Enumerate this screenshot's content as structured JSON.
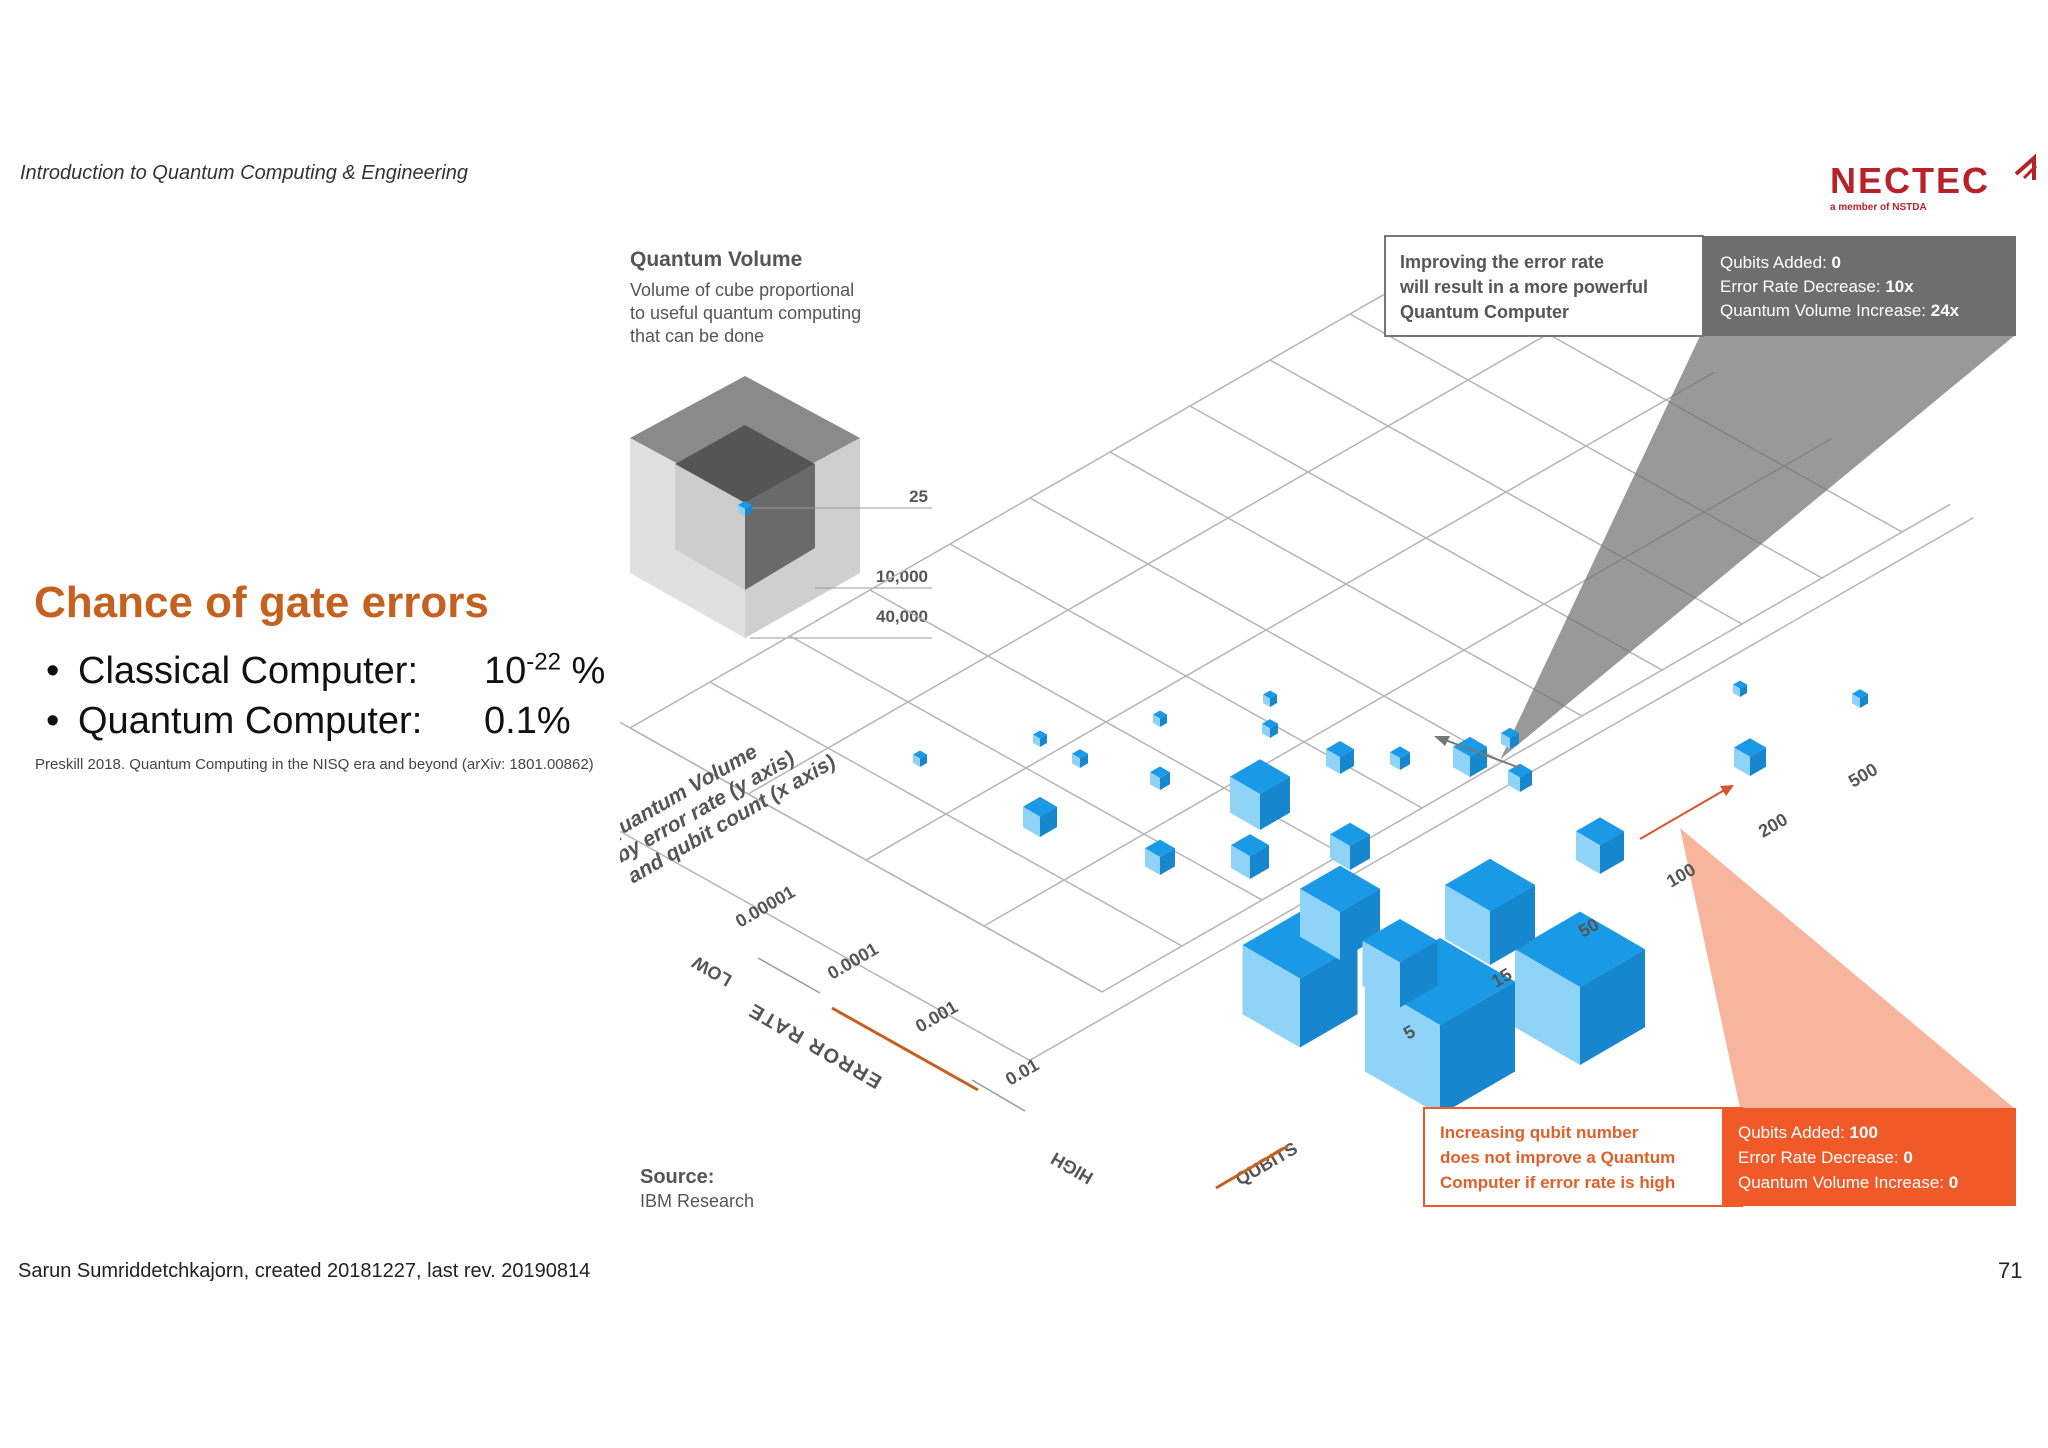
{
  "header": {
    "course_title": "Introduction to Quantum Computing & Engineering"
  },
  "logo": {
    "brand": "NECTEC",
    "tagline": "a member of NSTDA"
  },
  "content": {
    "title": "Chance of gate errors",
    "bullets": [
      {
        "label": "Classical Computer:",
        "value_base": "10",
        "value_exp": "-22",
        "value_unit": " %"
      },
      {
        "label": "Quantum Computer:",
        "value": "0.1%"
      }
    ],
    "citation": "Preskill 2018. Quantum Computing in the NISQ era and beyond (arXiv: 1801.00862)"
  },
  "figure": {
    "legend": {
      "title": "Quantum Volume",
      "desc": [
        "Volume of cube proportional",
        "to useful quantum computing",
        "that can be done"
      ],
      "marks": [
        "25",
        "10,000",
        "40,000"
      ]
    },
    "axis_caption": [
      "Quantum Volume",
      "by error rate (y axis)",
      "and qubit count (x axis)"
    ],
    "error_rates": [
      "0.00001",
      "0.0001",
      "0.001",
      "0.01"
    ],
    "qubit_counts": [
      "5",
      "15",
      "50",
      "100",
      "200",
      "500"
    ],
    "error_axis": {
      "low": "LOW",
      "label": "ERROR RATE",
      "high": "HIGH"
    },
    "qubits_label": "QUBITS",
    "callout_top": {
      "text": [
        "Improving the error rate",
        "will result in a more powerful",
        "Quantum Computer"
      ],
      "stat_labels": [
        "Qubits Added: ",
        "Error Rate Decrease: ",
        "Quantum Volume Increase: "
      ],
      "stat_values": [
        "0",
        "10x",
        "24x"
      ],
      "color": "#6e6e6e"
    },
    "callout_bottom": {
      "text": [
        "Increasing qubit number",
        "does not improve a Quantum",
        "Computer if error rate is high"
      ],
      "stat_labels": [
        "Qubits Added: ",
        "Error Rate Decrease: ",
        "Quantum Volume Increase: "
      ],
      "stat_values": [
        "100",
        "0",
        "0"
      ],
      "color": "#f05a28"
    },
    "source": {
      "label": "Source:",
      "value": "IBM Research"
    }
  },
  "footer": {
    "author": "Sarun Sumriddetchkajorn, created 20181227, last rev. 20190814",
    "page": "71"
  },
  "colors": {
    "accent": "#c5611e",
    "cube_top": "#1a9ae6",
    "cube_left": "#8fd3f7",
    "cube_right": "#1686cf",
    "brand": "#b8202a"
  }
}
